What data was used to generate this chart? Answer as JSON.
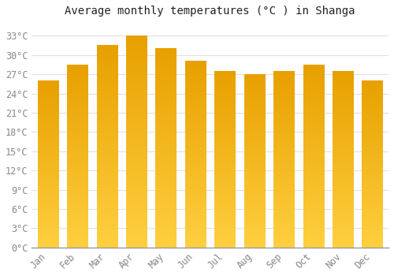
{
  "title": "Average monthly temperatures (°C ) in Shanga",
  "months": [
    "Jan",
    "Feb",
    "Mar",
    "Apr",
    "May",
    "Jun",
    "Jul",
    "Aug",
    "Sep",
    "Oct",
    "Nov",
    "Dec"
  ],
  "values": [
    26,
    28.5,
    31.5,
    33,
    31,
    29,
    27.5,
    27,
    27.5,
    28.5,
    27.5,
    26
  ],
  "bar_color_top": "#E8A000",
  "bar_color_bottom": "#FFD040",
  "background_color": "#FFFFFF",
  "grid_color": "#E0E0E0",
  "yticks": [
    0,
    3,
    6,
    9,
    12,
    15,
    18,
    21,
    24,
    27,
    30,
    33
  ],
  "ylim": [
    0,
    35
  ],
  "title_fontsize": 10,
  "tick_fontsize": 8.5,
  "font_family": "monospace",
  "tick_color": "#888888",
  "spine_color": "#999999"
}
